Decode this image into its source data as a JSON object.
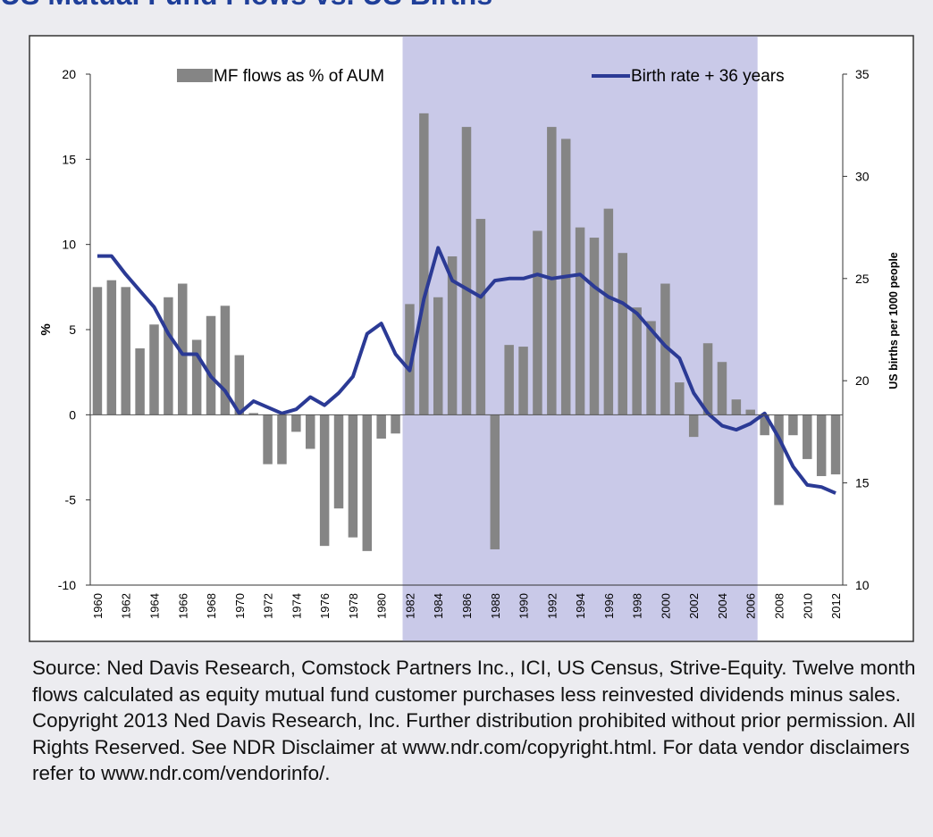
{
  "chart_data": {
    "type": "bar_line",
    "title": "US Mutual Fund Flows vs. US Births",
    "ylabel": "%",
    "y2label": "US births per 1000 people",
    "categories": [
      "1960",
      null,
      "1962",
      null,
      "1964",
      null,
      "1966",
      null,
      "1968",
      null,
      "1970",
      null,
      "1972",
      null,
      "1974",
      null,
      "1976",
      null,
      "1978",
      null,
      "1980",
      null,
      "1982",
      null,
      "1984",
      null,
      "1986",
      null,
      "1988",
      null,
      "1990",
      null,
      "1992",
      null,
      "1994",
      null,
      "1996",
      null,
      "1998",
      null,
      "2000",
      null,
      "2002",
      null,
      "2004",
      null,
      "2006",
      null,
      "2008",
      null,
      "2010",
      null,
      "2012"
    ],
    "series": [
      {
        "name": "MF flows as % of AUM",
        "type": "bar",
        "color": "#858585",
        "axis": "y",
        "values": [
          7.5,
          7.9,
          7.5,
          3.9,
          5.3,
          6.9,
          7.7,
          4.4,
          5.8,
          6.4,
          3.5,
          0.1,
          -2.9,
          -2.9,
          -1.0,
          -2.0,
          -7.7,
          -5.5,
          -7.2,
          -8.0,
          -1.4,
          -1.1,
          6.5,
          17.7,
          6.9,
          9.3,
          16.9,
          11.5,
          -7.9,
          4.1,
          4.0,
          10.8,
          16.9,
          16.2,
          11.0,
          10.4,
          12.1,
          9.5,
          6.3,
          5.5,
          7.7,
          1.9,
          -1.3,
          4.2,
          3.1,
          0.9,
          0.3,
          -1.2,
          -5.3,
          -1.2,
          -2.6,
          -3.6,
          -3.5
        ]
      },
      {
        "name": "Birth rate + 36 years",
        "type": "line",
        "color": "#2b3a95",
        "axis": "y2",
        "values": [
          26.1,
          26.1,
          25.2,
          24.4,
          23.6,
          22.3,
          21.3,
          21.3,
          20.2,
          19.5,
          18.4,
          19.0,
          18.7,
          18.4,
          18.6,
          19.2,
          18.8,
          19.4,
          20.2,
          22.3,
          22.8,
          21.3,
          20.5,
          24.0,
          26.5,
          24.9,
          24.5,
          24.1,
          24.9,
          25.0,
          25.0,
          25.2,
          25.0,
          25.1,
          25.2,
          24.6,
          24.1,
          23.8,
          23.3,
          22.5,
          21.7,
          21.1,
          19.4,
          18.4,
          17.8,
          17.6,
          17.9,
          18.4,
          17.2,
          15.8,
          14.9,
          14.8,
          14.5
        ]
      }
    ],
    "ylim": [
      -10,
      20
    ],
    "yticks": [
      -10,
      -5,
      0,
      5,
      10,
      15,
      20
    ],
    "y2lim": [
      10,
      35
    ],
    "y2ticks": [
      10,
      15,
      20,
      25,
      30,
      35
    ],
    "highlight": {
      "from": "1982",
      "to": "2006",
      "color": "#c9c9e8"
    },
    "source": "Source: Ned Davis Research, Comstock Partners Inc., ICI, US Census, Strive-Equity. Twelve month flows calculated as equity mutual fund customer purchases less reinvested dividends minus sales.  Copyright 2013 Ned Davis Research, Inc. Further distribution prohibited without prior permission. All Rights Reserved.  See NDR Disclaimer at www.ndr.com/copyright.html. For data vendor disclaimers refer to www.ndr.com/vendorinfo/."
  }
}
